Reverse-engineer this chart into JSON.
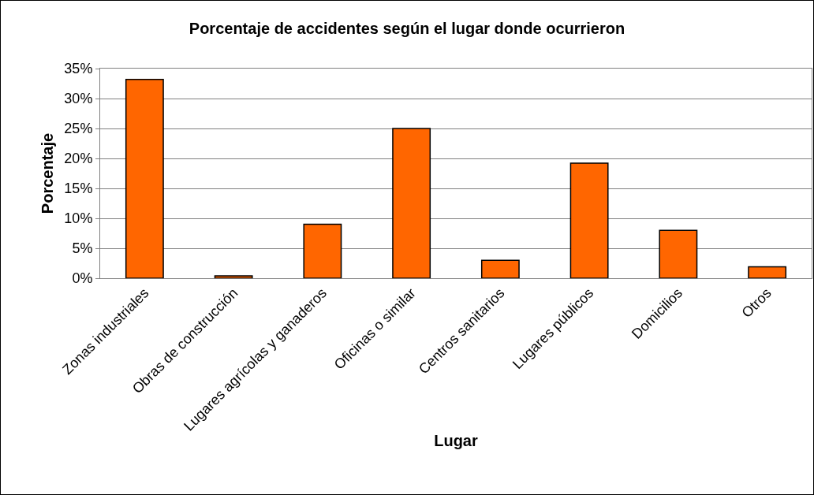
{
  "chart_data": {
    "type": "bar",
    "title": "Porcentaje de accidentes según el lugar donde ocurrieron",
    "xlabel": "Lugar",
    "ylabel": "Porcentaje",
    "categories": [
      "Zonas industriales",
      "Obras de construcción",
      "Lugares agrícolas y ganaderos",
      "Oficinas o similar",
      "Centros sanitarios",
      "Lugares públicos",
      "Domicilios",
      "Otros"
    ],
    "values": [
      33.2,
      0.4,
      9.0,
      25.0,
      3.0,
      19.2,
      8.0,
      1.9
    ],
    "color": "#ff6600",
    "ylim": [
      0,
      35
    ],
    "yticks": [
      {
        "value": 0,
        "label": "0%"
      },
      {
        "value": 5,
        "label": "5%"
      },
      {
        "value": 10,
        "label": "10%"
      },
      {
        "value": 15,
        "label": "15%"
      },
      {
        "value": 20,
        "label": "20%"
      },
      {
        "value": 25,
        "label": "25%"
      },
      {
        "value": 30,
        "label": "30%"
      },
      {
        "value": 35,
        "label": "35%"
      }
    ],
    "grid": "y"
  }
}
